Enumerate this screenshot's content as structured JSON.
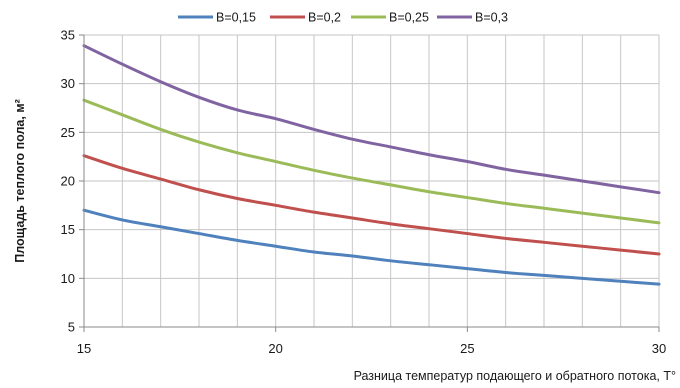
{
  "chart_data": {
    "type": "line",
    "title": "",
    "xlabel": "Разница температур подающего и обратного потока, T°",
    "ylabel": "Площадь теплого пола, м²",
    "xlim": [
      15,
      30
    ],
    "ylim": [
      5,
      35
    ],
    "x_ticks": [
      15,
      20,
      25,
      30
    ],
    "y_ticks": [
      5,
      10,
      15,
      20,
      25,
      30,
      35
    ],
    "x_grid_step": 1,
    "grid": true,
    "legend_position": "top",
    "x": [
      15,
      16,
      17,
      18,
      19,
      20,
      21,
      22,
      23,
      24,
      25,
      26,
      27,
      28,
      29,
      30
    ],
    "series": [
      {
        "name": "B=0,15",
        "color": "#4f81bd",
        "values": [
          17.0,
          16.0,
          15.3,
          14.6,
          13.9,
          13.3,
          12.7,
          12.3,
          11.8,
          11.4,
          11.0,
          10.6,
          10.3,
          10.0,
          9.7,
          9.4
        ]
      },
      {
        "name": "B=0,2",
        "color": "#c0504d",
        "values": [
          22.6,
          21.3,
          20.2,
          19.1,
          18.2,
          17.5,
          16.8,
          16.2,
          15.6,
          15.1,
          14.6,
          14.1,
          13.7,
          13.3,
          12.9,
          12.5
        ]
      },
      {
        "name": "B=0,25",
        "color": "#9bbb59",
        "values": [
          28.3,
          26.8,
          25.3,
          24.0,
          22.9,
          22.0,
          21.1,
          20.3,
          19.6,
          18.9,
          18.3,
          17.7,
          17.2,
          16.7,
          16.2,
          15.7
        ]
      },
      {
        "name": "B=0,3",
        "color": "#8064a2",
        "values": [
          33.9,
          32.0,
          30.2,
          28.6,
          27.3,
          26.4,
          25.3,
          24.3,
          23.5,
          22.7,
          22.0,
          21.2,
          20.6,
          20.0,
          19.4,
          18.8
        ]
      }
    ]
  }
}
